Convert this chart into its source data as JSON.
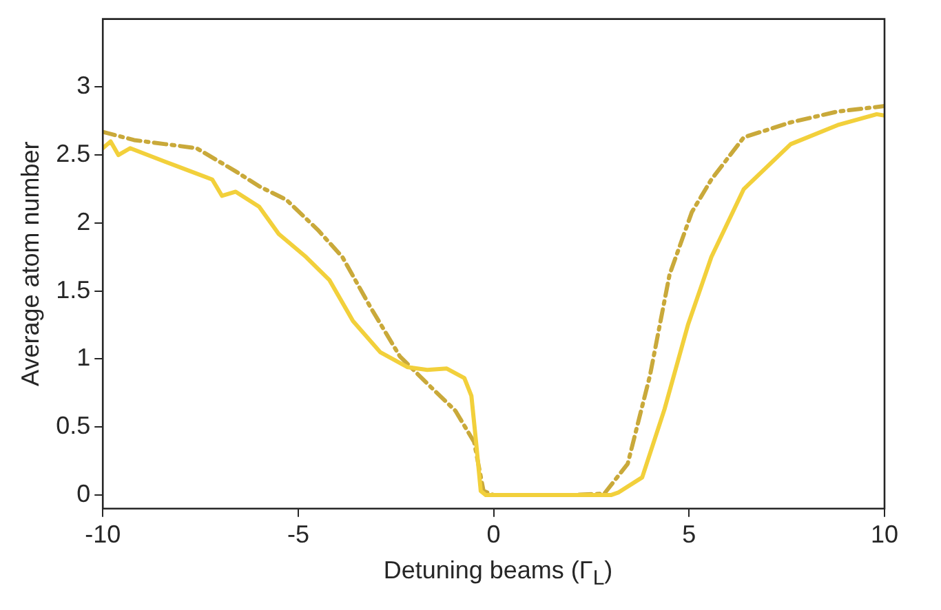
{
  "chart_data": {
    "type": "line",
    "xlabel": "Detuning beams (Γ$_{L}$)",
    "ylabel": "Average atom number",
    "xlim": [
      -10,
      10
    ],
    "xticks": [
      -10,
      -5,
      0,
      5,
      10
    ],
    "ylim": [
      -0.1,
      3.5
    ],
    "yticks": [
      0,
      0.5,
      1,
      1.5,
      2,
      2.5,
      3
    ],
    "grid": false,
    "legend": false,
    "marker": "none",
    "series": [
      {
        "color": "#f2d03b",
        "line_style": "solid",
        "x": [
          -10,
          -9.8,
          -9.6,
          -9.3,
          -8.4,
          -7.2,
          -6.95,
          -6.6,
          -6,
          -5.5,
          -4.8,
          -4.2,
          -3.6,
          -2.9,
          -2.2,
          -1.7,
          -1.2,
          -0.75,
          -0.57,
          -0.45,
          -0.33,
          -0.2,
          0,
          1,
          2,
          3,
          3.2,
          3.8,
          4.37,
          4.97,
          5.57,
          6.4,
          7.6,
          8.8,
          9.8,
          10
        ],
        "values": [
          2.55,
          2.6,
          2.5,
          2.55,
          2.45,
          2.32,
          2.2,
          2.23,
          2.12,
          1.92,
          1.75,
          1.58,
          1.28,
          1.05,
          0.94,
          0.92,
          0.93,
          0.86,
          0.73,
          0.39,
          0.03,
          0,
          0,
          0,
          0,
          0,
          0.02,
          0.13,
          0.63,
          1.25,
          1.75,
          2.25,
          2.58,
          2.72,
          2.8,
          2.79
        ]
      },
      {
        "color": "#c9a93a",
        "line_style": "dashed",
        "x": [
          -10,
          -9.2,
          -8.4,
          -7.6,
          -6.6,
          -6,
          -5.3,
          -4.5,
          -3.87,
          -3.15,
          -2.4,
          -1.7,
          -0.98,
          -0.5,
          -0.26,
          0,
          1,
          2,
          2.83,
          3.43,
          4,
          4.5,
          5.07,
          5.57,
          6.4,
          7.6,
          8.8,
          10
        ],
        "values": [
          2.67,
          2.61,
          2.58,
          2.55,
          2.38,
          2.27,
          2.17,
          1.95,
          1.75,
          1.38,
          1.02,
          0.82,
          0.62,
          0.39,
          0.03,
          0,
          0,
          0,
          0.01,
          0.23,
          0.88,
          1.62,
          2.08,
          2.32,
          2.63,
          2.74,
          2.82,
          2.86
        ]
      }
    ]
  }
}
